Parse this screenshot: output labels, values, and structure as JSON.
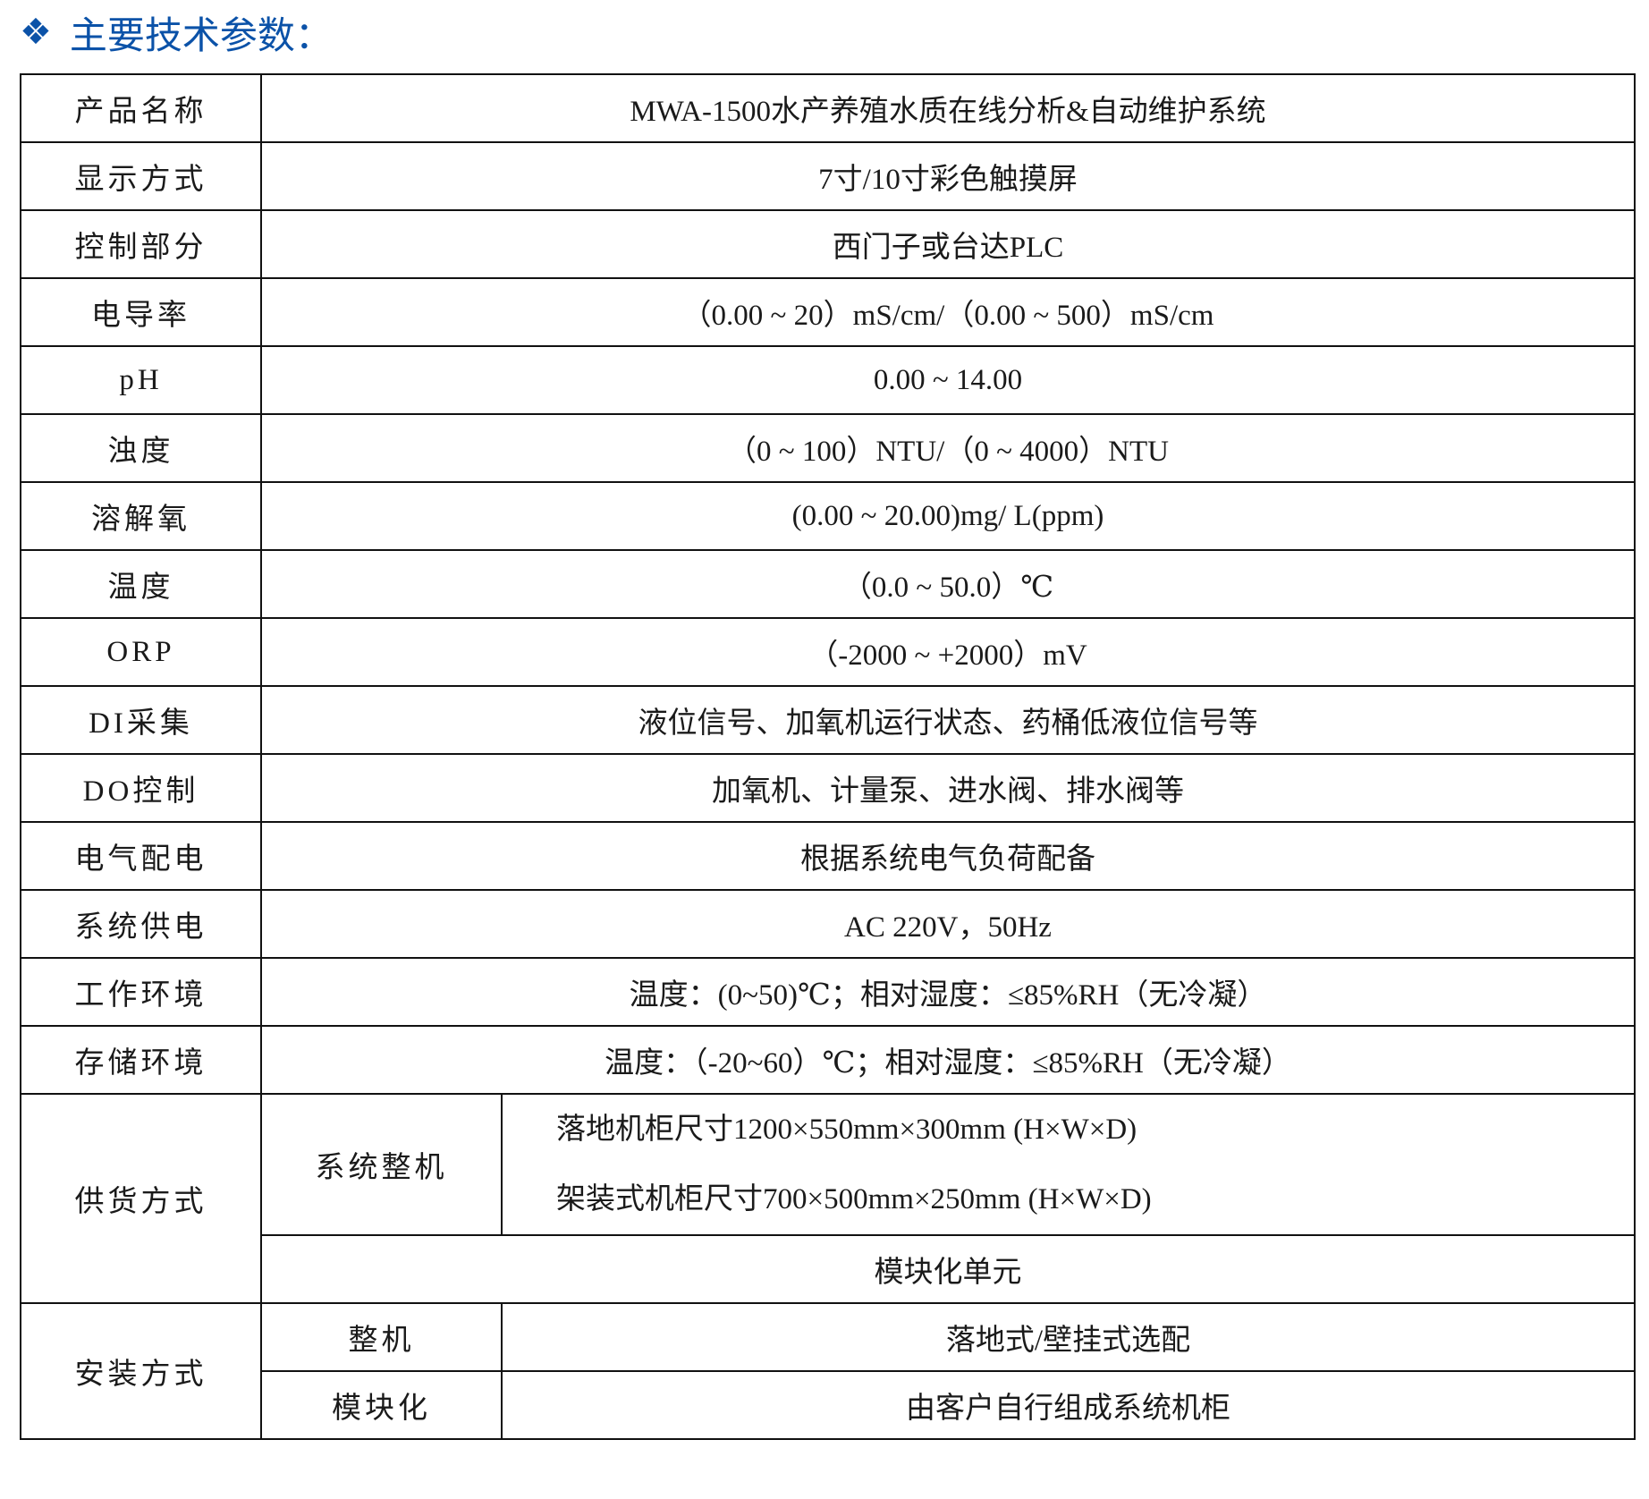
{
  "header": {
    "icon": "diamond-cluster-icon",
    "title": "主要技术参数：",
    "accent_color": "#0b52a8"
  },
  "rows": [
    {
      "label": "产品名称",
      "value": "MWA-1500水产养殖水质在线分析&自动维护系统"
    },
    {
      "label": "显示方式",
      "value": "7寸/10寸彩色触摸屏"
    },
    {
      "label": "控制部分",
      "value": "西门子或台达PLC"
    },
    {
      "label": "电导率",
      "value": "（0.00 ~ 20）mS/cm/（0.00 ~ 500）mS/cm"
    },
    {
      "label": "pH",
      "value": "0.00 ~ 14.00"
    },
    {
      "label": "浊度",
      "value": "（0 ~ 100）NTU/（0 ~ 4000）NTU"
    },
    {
      "label": "溶解氧",
      "value": "(0.00 ~ 20.00)mg/ L(ppm)"
    },
    {
      "label": "温度",
      "value": "（0.0 ~ 50.0）℃"
    },
    {
      "label": "ORP",
      "value": "（-2000 ~ +2000）mV"
    },
    {
      "label": "DI采集",
      "value": "液位信号、加氧机运行状态、药桶低液位信号等"
    },
    {
      "label": "DO控制",
      "value": "加氧机、计量泵、进水阀、排水阀等"
    },
    {
      "label": "电气配电",
      "value": "根据系统电气负荷配备"
    },
    {
      "label": "系统供电",
      "value": "AC 220V，50Hz"
    },
    {
      "label": "工作环境",
      "value": "温度：(0~50)℃；相对湿度：≤85%RH（无冷凝）"
    },
    {
      "label": "存储环境",
      "value": "温度：（-20~60）℃；相对湿度：≤85%RH（无冷凝）"
    }
  ],
  "supply": {
    "label": "供货方式",
    "system_label": "系统整机",
    "system_values": [
      "落地机柜尺寸1200×550mm×300mm (H×W×D)",
      "架装式机柜尺寸700×500mm×250mm (H×W×D)"
    ],
    "module_value": "模块化单元"
  },
  "install": {
    "label": "安装方式",
    "items": [
      {
        "label": "整机",
        "value": "落地式/壁挂式选配"
      },
      {
        "label": "模块化",
        "value": "由客户自行组成系统机柜"
      }
    ]
  }
}
